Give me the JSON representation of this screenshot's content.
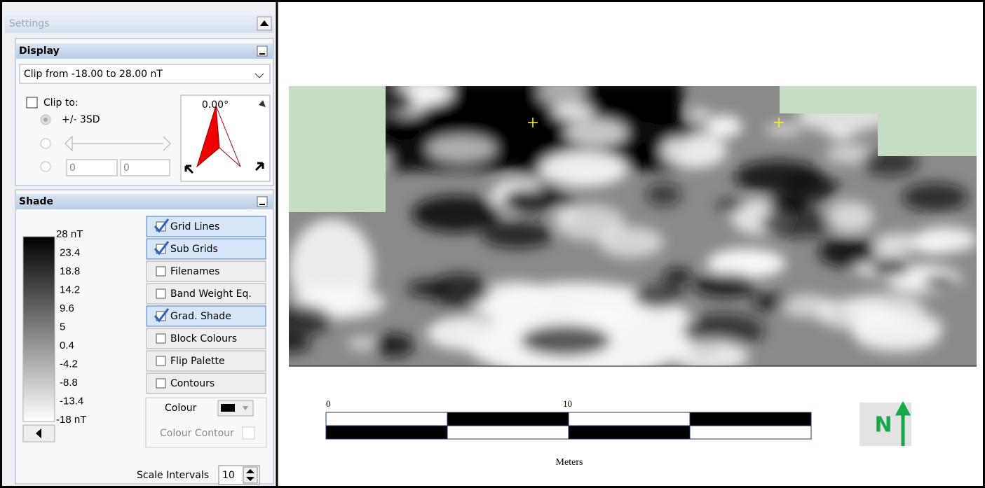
{
  "settings": {
    "title": "Settings"
  },
  "display": {
    "title": "Display",
    "clip_select": "Clip from -18.00 to 28.00 nT",
    "clip_to": "Clip to:",
    "sd_option": "+/- 3SD",
    "min_input": "0",
    "max_input": "0",
    "rotation": "0.00°"
  },
  "shade": {
    "title": "Shade",
    "legend_labels": [
      "28 nT",
      "23.4",
      "18.8",
      "14.2",
      "9.6",
      "5",
      "0.4",
      "-4.2",
      "-8.8",
      "-13.4",
      "-18 nT"
    ],
    "options": [
      {
        "label": "Grid Lines",
        "checked": true
      },
      {
        "label": "Sub Grids",
        "checked": true
      },
      {
        "label": "Filenames",
        "checked": false
      },
      {
        "label": "Band Weight Eq.",
        "checked": false
      },
      {
        "label": "Grad. Shade",
        "checked": true
      },
      {
        "label": "Block Colours",
        "checked": false
      },
      {
        "label": "Flip Palette",
        "checked": false
      },
      {
        "label": "Contours",
        "checked": false
      }
    ],
    "colour_label": "Colour",
    "colour_contour": "Colour Contour",
    "scale_intervals_label": "Scale Intervals",
    "scale_intervals": "10"
  },
  "map": {
    "scale_labels": [
      "0",
      "10"
    ],
    "scale_unit": "Meters",
    "north": "N"
  }
}
